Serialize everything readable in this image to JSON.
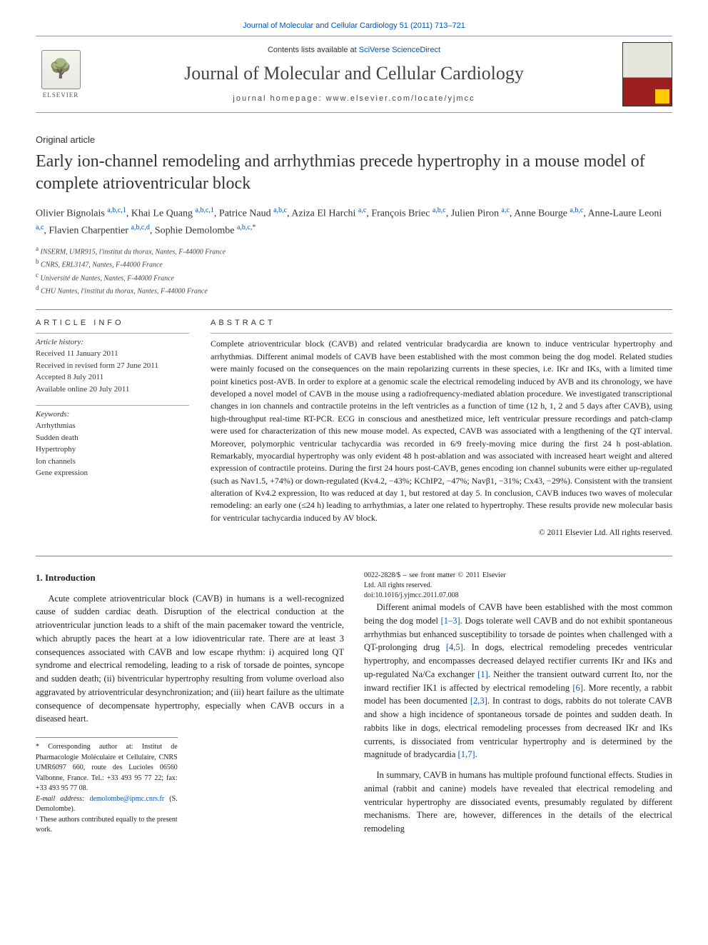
{
  "top_link": "Journal of Molecular and Cellular Cardiology 51 (2011) 713–721",
  "header": {
    "contents_prefix": "Contents lists available at ",
    "contents_link": "SciVerse ScienceDirect",
    "journal_name": "Journal of Molecular and Cellular Cardiology",
    "homepage_label": "journal homepage: ",
    "homepage_url": "www.elsevier.com/locate/yjmcc",
    "publisher": "ELSEVIER"
  },
  "article_type": "Original article",
  "title": "Early ion-channel remodeling and arrhythmias precede hypertrophy in a mouse model of complete atrioventricular block",
  "authors_html": "Olivier Bignolais <sup class='affmark'>a,b,c,1</sup>, Khai Le Quang <sup class='affmark'>a,b,c,1</sup>, Patrice Naud <sup class='affmark'>a,b,c</sup>, Aziza El Harchi <sup class='affmark'>a,c</sup>, François Briec <sup class='affmark'>a,b,c</sup>, Julien Piron <sup class='affmark'>a,c</sup>, Anne Bourge <sup class='affmark'>a,b,c</sup>, Anne-Laure Leoni <sup class='affmark'>a,c</sup>, Flavien Charpentier <sup class='affmark'>a,b,c,d</sup>, Sophie Demolombe <sup class='affmark'>a,b,c,*</sup>",
  "affiliations": [
    "INSERM, UMR915, l'institut du thorax, Nantes, F-44000 France",
    "CNRS, ERL3147, Nantes, F-44000 France",
    "Université de Nantes, Nantes, F-44000 France",
    "CHU Nantes, l'institut du thorax, Nantes, F-44000 France"
  ],
  "aff_markers": [
    "a",
    "b",
    "c",
    "d"
  ],
  "info": {
    "label": "ARTICLE INFO",
    "history_label": "Article history:",
    "history": [
      "Received 11 January 2011",
      "Received in revised form 27 June 2011",
      "Accepted 8 July 2011",
      "Available online 20 July 2011"
    ],
    "keywords_label": "Keywords:",
    "keywords": [
      "Arrhythmias",
      "Sudden death",
      "Hypertrophy",
      "Ion channels",
      "Gene expression"
    ]
  },
  "abstract": {
    "label": "ABSTRACT",
    "text": "Complete atrioventricular block (CAVB) and related ventricular bradycardia are known to induce ventricular hypertrophy and arrhythmias. Different animal models of CAVB have been established with the most common being the dog model. Related studies were mainly focused on the consequences on the main repolarizing currents in these species, i.e. IKr and IKs, with a limited time point kinetics post-AVB. In order to explore at a genomic scale the electrical remodeling induced by AVB and its chronology, we have developed a novel model of CAVB in the mouse using a radiofrequency-mediated ablation procedure. We investigated transcriptional changes in ion channels and contractile proteins in the left ventricles as a function of time (12 h, 1, 2 and 5 days after CAVB), using high-throughput real-time RT-PCR. ECG in conscious and anesthetized mice, left ventricular pressure recordings and patch-clamp were used for characterization of this new mouse model. As expected, CAVB was associated with a lengthening of the QT interval. Moreover, polymorphic ventricular tachycardia was recorded in 6/9 freely-moving mice during the first 24 h post-ablation. Remarkably, myocardial hypertrophy was only evident 48 h post-ablation and was associated with increased heart weight and altered expression of contractile proteins. During the first 24 hours post-CAVB, genes encoding ion channel subunits were either up-regulated (such as Nav1.5, +74%) or down-regulated (Kv4.2, −43%; KChIP2, −47%; Navβ1, −31%; Cx43, −29%). Consistent with the transient alteration of Kv4.2 expression, Ito was reduced at day 1, but restored at day 5. In conclusion, CAVB induces two waves of molecular remodeling: an early one (≤24 h) leading to arrhythmias, a later one related to hypertrophy. These results provide new molecular basis for ventricular tachycardia induced by AV block.",
    "copyright": "© 2011 Elsevier Ltd. All rights reserved."
  },
  "body": {
    "intro_heading": "1. Introduction",
    "p1": "Acute complete atrioventricular block (CAVB) in humans is a well-recognized cause of sudden cardiac death. Disruption of the electrical conduction at the atrioventricular junction leads to a shift of the main pacemaker toward the ventricle, which abruptly paces the heart at a low idioventricular rate. There are at least 3 consequences associated with CAVB and low escape rhythm: i) acquired long QT syndrome and electrical remodeling, leading to a risk of torsade de pointes, syncope and sudden death; (ii) biventricular hypertrophy resulting from volume overload also aggravated by atrioventricular desynchronization; and (iii) heart failure as the ultimate consequence of decompensate hypertrophy, especially when CAVB occurs in a diseased heart.",
    "p2_before": "Different animal models of CAVB have been established with the most common being the dog model ",
    "p2_ref1": "[1–3]",
    "p2_mid1": ". Dogs tolerate well CAVB and do not exhibit spontaneous arrhythmias but enhanced susceptibility to torsade de pointes when challenged with a QT-prolonging drug ",
    "p2_ref2": "[4,5]",
    "p2_mid2": ". In dogs, electrical remodeling precedes ventricular hypertrophy, and encompasses decreased delayed rectifier currents IKr and IKs and up-regulated Na/Ca exchanger ",
    "p2_ref3": "[1]",
    "p2_mid3": ". Neither the transient outward current Ito, nor the inward rectifier IK1 is affected by electrical remodeling ",
    "p2_ref4": "[6]",
    "p2_mid4": ". More recently, a rabbit model has been documented ",
    "p2_ref5": "[2,3]",
    "p2_mid5": ". In contrast to dogs, rabbits do not tolerate CAVB and show a high incidence of spontaneous torsade de pointes and sudden death. In rabbits like in dogs, electrical remodeling processes from decreased IKr and IKs currents, is dissociated from ventricular hypertrophy and is determined by the magnitude of bradycardia ",
    "p2_ref6": "[1,7]",
    "p2_end": ".",
    "p3": "In summary, CAVB in humans has multiple profound functional effects. Studies in animal (rabbit and canine) models have revealed that electrical remodeling and ventricular hypertrophy are dissociated events, presumably regulated by different mechanisms. There are, however, differences in the details of the electrical remodeling"
  },
  "footnotes": {
    "corr": "* Corresponding author at: Institut de Pharmacologie Moléculaire et Cellulaire, CNRS UMR6097 660, route des Lucioles 06560 Valbonne, France. Tel.: +33 493 95 77 22; fax: +33 493 95 77 08.",
    "email_label": "E-mail address: ",
    "email": "demolombe@ipmc.cnrs.fr",
    "email_suffix": " (S. Demolombe).",
    "equal": "¹ These authors contributed equally to the present work.",
    "front_matter": "0022-2828/$ – see front matter © 2011 Elsevier Ltd. All rights reserved.",
    "doi": "doi:10.1016/j.yjmcc.2011.07.008"
  }
}
